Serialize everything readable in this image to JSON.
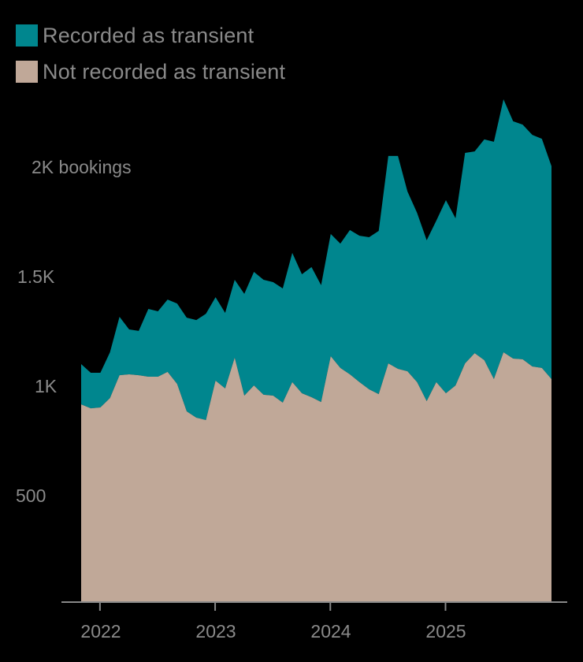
{
  "legend": [
    {
      "label": "Recorded as transient",
      "color": "#00868E"
    },
    {
      "label": "Not recorded as transient",
      "color": "#C0A898"
    }
  ],
  "y_axis": {
    "unit_label": "2K bookings",
    "ticks": [
      {
        "label": "500",
        "value": 500
      },
      {
        "label": "1K",
        "value": 1000
      },
      {
        "label": "1.5K",
        "value": 1500
      },
      {
        "label": "2K",
        "value": 2000
      }
    ]
  },
  "x_axis": {
    "ticks": [
      {
        "label": "2022"
      },
      {
        "label": "2023"
      },
      {
        "label": "2024"
      },
      {
        "label": "2025"
      }
    ]
  },
  "chart_data": {
    "type": "area",
    "stacked": true,
    "title": "",
    "xlabel": "",
    "ylabel": "bookings",
    "ylim": [
      0,
      2400
    ],
    "x_start": "2021-11",
    "x_end": "2025-12",
    "frequency": "monthly",
    "x": [
      "2021-11",
      "2021-12",
      "2022-01",
      "2022-02",
      "2022-03",
      "2022-04",
      "2022-05",
      "2022-06",
      "2022-07",
      "2022-08",
      "2022-09",
      "2022-10",
      "2022-11",
      "2022-12",
      "2023-01",
      "2023-02",
      "2023-03",
      "2023-04",
      "2023-05",
      "2023-06",
      "2023-07",
      "2023-08",
      "2023-09",
      "2023-10",
      "2023-11",
      "2023-12",
      "2024-01",
      "2024-02",
      "2024-03",
      "2024-04",
      "2024-05",
      "2024-06",
      "2024-07",
      "2024-08",
      "2024-09",
      "2024-10",
      "2024-11",
      "2024-12",
      "2025-01",
      "2025-02",
      "2025-03",
      "2025-04",
      "2025-05",
      "2025-06",
      "2025-07",
      "2025-08",
      "2025-09",
      "2025-10",
      "2025-11",
      "2025-12"
    ],
    "series": [
      {
        "name": "Not recorded as transient",
        "color": "#C0A898",
        "values": [
          911,
          893,
          897,
          940,
          1045,
          1049,
          1045,
          1038,
          1038,
          1060,
          1005,
          879,
          850,
          839,
          1020,
          984,
          1125,
          951,
          998,
          955,
          951,
          919,
          1013,
          962,
          944,
          922,
          1132,
          1078,
          1049,
          1013,
          980,
          958,
          1099,
          1074,
          1063,
          1013,
          926,
          1013,
          962,
          998,
          1099,
          1146,
          1114,
          1027,
          1150,
          1121,
          1118,
          1085,
          1078,
          1027
        ]
      },
      {
        "name": "Recorded as transient",
        "color": "#00868E",
        "values": [
          185,
          163,
          159,
          210,
          268,
          206,
          203,
          311,
          300,
          332,
          369,
          430,
          448,
          488,
          383,
          347,
          358,
          467,
          521,
          528,
          521,
          524,
          593,
          546,
          597,
          536,
          561,
          571,
          662,
          672,
          698,
          749,
          952,
          977,
          825,
          777,
          738,
          741,
          886,
          767,
          966,
          926,
          1013,
          1089,
          1161,
          1089,
          1077,
          1063,
          1052,
          977
        ]
      }
    ],
    "totals": [
      1096,
      1056,
      1056,
      1150,
      1313,
      1255,
      1248,
      1349,
      1338,
      1392,
      1374,
      1309,
      1298,
      1327,
      1403,
      1331,
      1483,
      1418,
      1519,
      1483,
      1472,
      1443,
      1606,
      1508,
      1541,
      1458,
      1693,
      1649,
      1711,
      1685,
      1678,
      1707,
      2051,
      2051,
      1888,
      1790,
      1664,
      1754,
      1848,
      1765,
      2065,
      2072,
      2127,
      2116,
      2311,
      2210,
      2195,
      2148,
      2130,
      2004
    ],
    "legend_position": "top-left",
    "grid": false
  }
}
